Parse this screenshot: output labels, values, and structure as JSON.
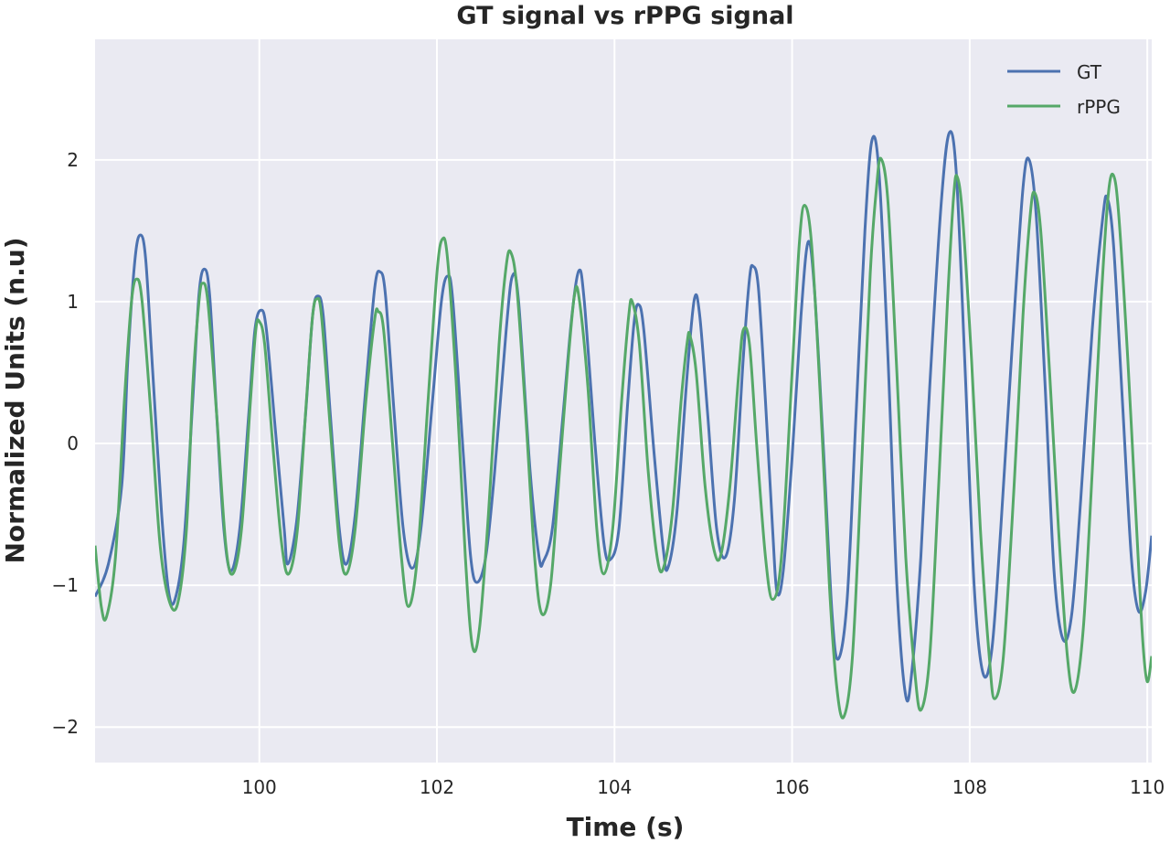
{
  "chart_data": {
    "type": "line",
    "title": "GT signal vs rPPG signal",
    "xlabel": "Time (s)",
    "ylabel": "Normalized Units (n.u)",
    "xlim": [
      98.15,
      110.05
    ],
    "ylim": [
      -2.25,
      2.85
    ],
    "xticks": [
      100,
      102,
      104,
      106,
      108,
      110
    ],
    "xtick_labels": [
      "100",
      "102",
      "104",
      "106",
      "108",
      "110"
    ],
    "yticks": [
      -2,
      -1,
      0,
      1,
      2
    ],
    "ytick_labels": [
      "−2",
      "−1",
      "0",
      "1",
      "2"
    ],
    "grid": true,
    "legend_position": "top-right",
    "background": "#EAEAF2",
    "series": [
      {
        "name": "GT",
        "color": "#4C72B0",
        "points": [
          [
            98.15,
            -1.08
          ],
          [
            98.3,
            -0.85
          ],
          [
            98.45,
            -0.3
          ],
          [
            98.52,
            0.6
          ],
          [
            98.6,
            1.3
          ],
          [
            98.66,
            1.47
          ],
          [
            98.72,
            1.3
          ],
          [
            98.8,
            0.5
          ],
          [
            98.9,
            -0.5
          ],
          [
            98.98,
            -1.05
          ],
          [
            99.05,
            -1.1
          ],
          [
            99.15,
            -0.7
          ],
          [
            99.25,
            0.3
          ],
          [
            99.32,
            1.05
          ],
          [
            99.38,
            1.23
          ],
          [
            99.44,
            1.05
          ],
          [
            99.52,
            0.2
          ],
          [
            99.6,
            -0.6
          ],
          [
            99.68,
            -0.9
          ],
          [
            99.78,
            -0.6
          ],
          [
            99.88,
            0.2
          ],
          [
            99.95,
            0.8
          ],
          [
            100.02,
            0.94
          ],
          [
            100.08,
            0.8
          ],
          [
            100.18,
            0.1
          ],
          [
            100.28,
            -0.6
          ],
          [
            100.32,
            -0.85
          ],
          [
            100.42,
            -0.55
          ],
          [
            100.52,
            0.2
          ],
          [
            100.6,
            0.9
          ],
          [
            100.66,
            1.04
          ],
          [
            100.72,
            0.9
          ],
          [
            100.8,
            0.2
          ],
          [
            100.9,
            -0.6
          ],
          [
            100.98,
            -0.85
          ],
          [
            101.08,
            -0.5
          ],
          [
            101.2,
            0.4
          ],
          [
            101.3,
            1.1
          ],
          [
            101.36,
            1.21
          ],
          [
            101.42,
            1.05
          ],
          [
            101.52,
            0.2
          ],
          [
            101.62,
            -0.6
          ],
          [
            101.72,
            -0.88
          ],
          [
            101.82,
            -0.6
          ],
          [
            101.95,
            0.3
          ],
          [
            102.05,
            1.0
          ],
          [
            102.12,
            1.18
          ],
          [
            102.18,
            1.0
          ],
          [
            102.3,
            -0.1
          ],
          [
            102.38,
            -0.8
          ],
          [
            102.45,
            -0.98
          ],
          [
            102.55,
            -0.8
          ],
          [
            102.65,
            -0.2
          ],
          [
            102.78,
            0.8
          ],
          [
            102.85,
            1.18
          ],
          [
            102.92,
            1.0
          ],
          [
            103.05,
            -0.2
          ],
          [
            103.15,
            -0.8
          ],
          [
            103.2,
            -0.83
          ],
          [
            103.3,
            -0.6
          ],
          [
            103.42,
            0.2
          ],
          [
            103.52,
            0.9
          ],
          [
            103.6,
            1.22
          ],
          [
            103.66,
            1.0
          ],
          [
            103.78,
            0.0
          ],
          [
            103.88,
            -0.7
          ],
          [
            103.95,
            -0.82
          ],
          [
            104.05,
            -0.6
          ],
          [
            104.15,
            0.3
          ],
          [
            104.22,
            0.85
          ],
          [
            104.27,
            0.98
          ],
          [
            104.33,
            0.8
          ],
          [
            104.45,
            -0.1
          ],
          [
            104.55,
            -0.75
          ],
          [
            104.6,
            -0.88
          ],
          [
            104.7,
            -0.5
          ],
          [
            104.82,
            0.5
          ],
          [
            104.9,
            1.02
          ],
          [
            104.96,
            0.9
          ],
          [
            105.05,
            0.2
          ],
          [
            105.15,
            -0.6
          ],
          [
            105.25,
            -0.8
          ],
          [
            105.35,
            -0.4
          ],
          [
            105.45,
            0.6
          ],
          [
            105.52,
            1.16
          ],
          [
            105.56,
            1.25
          ],
          [
            105.62,
            1.1
          ],
          [
            105.7,
            0.3
          ],
          [
            105.78,
            -0.6
          ],
          [
            105.83,
            -1.05
          ],
          [
            105.9,
            -0.9
          ],
          [
            106.0,
            -0.1
          ],
          [
            106.1,
            0.9
          ],
          [
            106.18,
            1.42
          ],
          [
            106.25,
            1.1
          ],
          [
            106.35,
            0.0
          ],
          [
            106.45,
            -1.2
          ],
          [
            106.52,
            -1.52
          ],
          [
            106.62,
            -1.1
          ],
          [
            106.72,
            0.2
          ],
          [
            106.82,
            1.5
          ],
          [
            106.9,
            2.14
          ],
          [
            106.98,
            1.9
          ],
          [
            107.08,
            0.6
          ],
          [
            107.18,
            -1.0
          ],
          [
            107.28,
            -1.78
          ],
          [
            107.35,
            -1.6
          ],
          [
            107.45,
            -0.8
          ],
          [
            107.55,
            0.4
          ],
          [
            107.68,
            1.7
          ],
          [
            107.77,
            2.19
          ],
          [
            107.85,
            1.9
          ],
          [
            107.95,
            0.5
          ],
          [
            108.05,
            -1.0
          ],
          [
            108.15,
            -1.62
          ],
          [
            108.25,
            -1.45
          ],
          [
            108.35,
            -0.6
          ],
          [
            108.48,
            0.7
          ],
          [
            108.6,
            1.8
          ],
          [
            108.67,
            2.0
          ],
          [
            108.75,
            1.6
          ],
          [
            108.85,
            0.4
          ],
          [
            108.95,
            -0.9
          ],
          [
            109.05,
            -1.38
          ],
          [
            109.15,
            -1.2
          ],
          [
            109.25,
            -0.4
          ],
          [
            109.38,
            0.8
          ],
          [
            109.5,
            1.6
          ],
          [
            109.55,
            1.73
          ],
          [
            109.62,
            1.4
          ],
          [
            109.72,
            0.3
          ],
          [
            109.82,
            -0.8
          ],
          [
            109.9,
            -1.18
          ],
          [
            109.98,
            -1.05
          ],
          [
            110.05,
            -0.65
          ]
        ]
      },
      {
        "name": "rPPG",
        "color": "#55A868",
        "points": [
          [
            98.15,
            -0.72
          ],
          [
            98.22,
            -1.15
          ],
          [
            98.28,
            -1.22
          ],
          [
            98.38,
            -0.8
          ],
          [
            98.48,
            0.3
          ],
          [
            98.56,
            1.0
          ],
          [
            98.62,
            1.16
          ],
          [
            98.68,
            1.0
          ],
          [
            98.78,
            0.2
          ],
          [
            98.88,
            -0.7
          ],
          [
            98.98,
            -1.1
          ],
          [
            99.08,
            -1.13
          ],
          [
            99.18,
            -0.6
          ],
          [
            99.25,
            0.4
          ],
          [
            99.32,
            1.0
          ],
          [
            99.36,
            1.13
          ],
          [
            99.42,
            1.0
          ],
          [
            99.52,
            0.2
          ],
          [
            99.62,
            -0.7
          ],
          [
            99.7,
            -0.92
          ],
          [
            99.8,
            -0.6
          ],
          [
            99.9,
            0.3
          ],
          [
            99.96,
            0.8
          ],
          [
            100.0,
            0.86
          ],
          [
            100.06,
            0.7
          ],
          [
            100.15,
            0.0
          ],
          [
            100.25,
            -0.7
          ],
          [
            100.33,
            -0.92
          ],
          [
            100.43,
            -0.6
          ],
          [
            100.53,
            0.3
          ],
          [
            100.6,
            0.9
          ],
          [
            100.65,
            1.02
          ],
          [
            100.7,
            0.9
          ],
          [
            100.8,
            0.1
          ],
          [
            100.9,
            -0.7
          ],
          [
            100.98,
            -0.92
          ],
          [
            101.08,
            -0.6
          ],
          [
            101.2,
            0.3
          ],
          [
            101.3,
            0.88
          ],
          [
            101.34,
            0.93
          ],
          [
            101.4,
            0.8
          ],
          [
            101.5,
            0.0
          ],
          [
            101.6,
            -0.8
          ],
          [
            101.68,
            -1.15
          ],
          [
            101.78,
            -0.8
          ],
          [
            101.9,
            0.3
          ],
          [
            102.0,
            1.2
          ],
          [
            102.06,
            1.44
          ],
          [
            102.12,
            1.3
          ],
          [
            102.22,
            0.4
          ],
          [
            102.32,
            -0.8
          ],
          [
            102.4,
            -1.43
          ],
          [
            102.48,
            -1.3
          ],
          [
            102.58,
            -0.5
          ],
          [
            102.7,
            0.7
          ],
          [
            102.78,
            1.25
          ],
          [
            102.83,
            1.35
          ],
          [
            102.9,
            1.1
          ],
          [
            103.0,
            0.2
          ],
          [
            103.1,
            -0.8
          ],
          [
            103.18,
            -1.2
          ],
          [
            103.28,
            -1.0
          ],
          [
            103.38,
            -0.2
          ],
          [
            103.48,
            0.6
          ],
          [
            103.55,
            1.05
          ],
          [
            103.6,
            1.03
          ],
          [
            103.7,
            0.4
          ],
          [
            103.8,
            -0.6
          ],
          [
            103.88,
            -0.92
          ],
          [
            103.98,
            -0.6
          ],
          [
            104.08,
            0.3
          ],
          [
            104.16,
            0.9
          ],
          [
            104.2,
            1.0
          ],
          [
            104.28,
            0.7
          ],
          [
            104.38,
            -0.2
          ],
          [
            104.48,
            -0.8
          ],
          [
            104.55,
            -0.88
          ],
          [
            104.65,
            -0.5
          ],
          [
            104.75,
            0.3
          ],
          [
            104.82,
            0.72
          ],
          [
            104.85,
            0.76
          ],
          [
            104.92,
            0.5
          ],
          [
            105.02,
            -0.3
          ],
          [
            105.12,
            -0.75
          ],
          [
            105.2,
            -0.78
          ],
          [
            105.3,
            -0.3
          ],
          [
            105.4,
            0.5
          ],
          [
            105.45,
            0.8
          ],
          [
            105.52,
            0.7
          ],
          [
            105.6,
            0.0
          ],
          [
            105.7,
            -0.8
          ],
          [
            105.78,
            -1.1
          ],
          [
            105.88,
            -0.8
          ],
          [
            106.0,
            0.5
          ],
          [
            106.08,
            1.4
          ],
          [
            106.14,
            1.68
          ],
          [
            106.22,
            1.4
          ],
          [
            106.32,
            0.3
          ],
          [
            106.42,
            -1.0
          ],
          [
            106.5,
            -1.7
          ],
          [
            106.58,
            -1.93
          ],
          [
            106.68,
            -1.5
          ],
          [
            106.78,
            -0.2
          ],
          [
            106.88,
            1.2
          ],
          [
            106.95,
            1.8
          ],
          [
            107.0,
            2.01
          ],
          [
            107.08,
            1.7
          ],
          [
            107.18,
            0.5
          ],
          [
            107.28,
            -0.8
          ],
          [
            107.38,
            -1.6
          ],
          [
            107.45,
            -1.88
          ],
          [
            107.55,
            -1.5
          ],
          [
            107.65,
            -0.3
          ],
          [
            107.75,
            1.0
          ],
          [
            107.82,
            1.75
          ],
          [
            107.86,
            1.88
          ],
          [
            107.92,
            1.6
          ],
          [
            108.02,
            0.6
          ],
          [
            108.12,
            -0.6
          ],
          [
            108.22,
            -1.5
          ],
          [
            108.28,
            -1.8
          ],
          [
            108.38,
            -1.5
          ],
          [
            108.5,
            -0.3
          ],
          [
            108.6,
            0.9
          ],
          [
            108.68,
            1.6
          ],
          [
            108.73,
            1.77
          ],
          [
            108.8,
            1.5
          ],
          [
            108.9,
            0.5
          ],
          [
            109.0,
            -0.6
          ],
          [
            109.1,
            -1.5
          ],
          [
            109.18,
            -1.75
          ],
          [
            109.28,
            -1.3
          ],
          [
            109.38,
            -0.2
          ],
          [
            109.48,
            1.0
          ],
          [
            109.56,
            1.75
          ],
          [
            109.62,
            1.89
          ],
          [
            109.68,
            1.6
          ],
          [
            109.78,
            0.6
          ],
          [
            109.88,
            -0.6
          ],
          [
            109.95,
            -1.4
          ],
          [
            110.0,
            -1.68
          ],
          [
            110.05,
            -1.5
          ]
        ]
      }
    ]
  }
}
